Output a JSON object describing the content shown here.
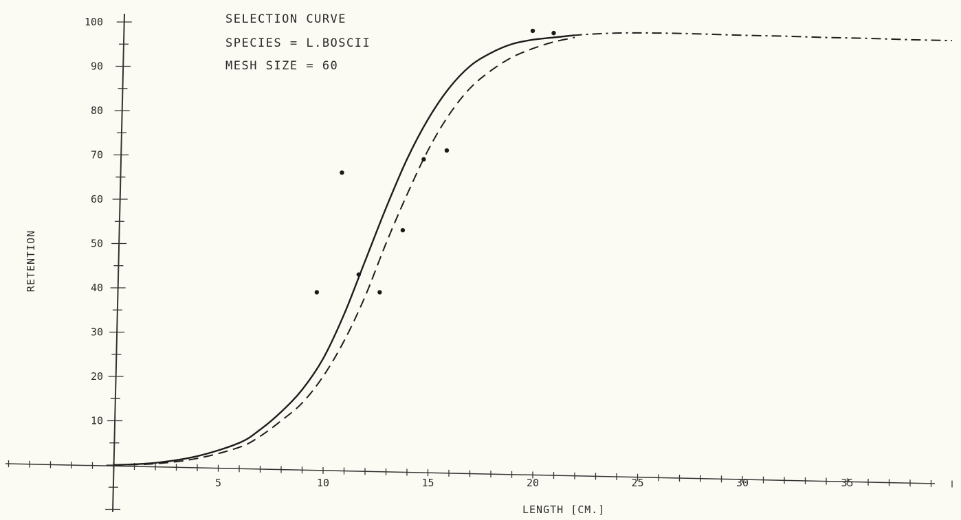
{
  "chart_data": {
    "type": "line",
    "title_lines": [
      "SELECTION  CURVE",
      "SPECIES =   L.BOSCII",
      "MESH  SIZE =    60"
    ],
    "xlabel": "LENGTH [CM.]",
    "ylabel": "RETENTION",
    "xlim": [
      0,
      40
    ],
    "ylim": [
      0,
      100
    ],
    "x_tick_labels": [
      "5",
      "10",
      "15",
      "20",
      "25",
      "30",
      "35"
    ],
    "y_tick_labels": [
      "10",
      "20",
      "30",
      "40",
      "50",
      "60",
      "70",
      "80",
      "90",
      "100"
    ],
    "grid": false,
    "series": [
      {
        "style": "solid",
        "x": [
          0,
          2,
          4,
          6,
          7,
          8,
          9,
          10,
          11,
          12,
          13,
          14,
          15,
          16,
          17,
          18,
          19,
          20,
          21,
          22
        ],
        "y": [
          0,
          0.5,
          2,
          5,
          8,
          12,
          17,
          24,
          34,
          46,
          58,
          69,
          78,
          85,
          90,
          93,
          95,
          96,
          96.5,
          97
        ]
      },
      {
        "style": "dashed",
        "x": [
          0,
          2,
          4,
          6,
          7,
          8,
          9,
          10,
          11,
          12,
          13,
          14,
          15,
          16,
          17,
          18,
          19,
          20,
          21,
          22
        ],
        "y": [
          0,
          0.3,
          1.5,
          4,
          6.5,
          10,
          14,
          20,
          28,
          38,
          50,
          61,
          71,
          79,
          85,
          89,
          92,
          94,
          95.5,
          96.5
        ]
      },
      {
        "style": "dash-dot",
        "x": [
          20,
          22,
          24,
          26,
          28,
          30,
          32,
          34,
          36,
          38,
          40
        ],
        "y": [
          96,
          97,
          97.5,
          97.5,
          97.3,
          97,
          96.8,
          96.5,
          96.3,
          96,
          95.8
        ]
      }
    ],
    "points": [
      {
        "x": 9.7,
        "y": 39
      },
      {
        "x": 10.9,
        "y": 66
      },
      {
        "x": 11.7,
        "y": 43
      },
      {
        "x": 12.7,
        "y": 39
      },
      {
        "x": 13.8,
        "y": 53
      },
      {
        "x": 14.8,
        "y": 69
      },
      {
        "x": 15.9,
        "y": 71
      },
      {
        "x": 20.0,
        "y": 98
      },
      {
        "x": 21.0,
        "y": 97.5
      }
    ]
  }
}
